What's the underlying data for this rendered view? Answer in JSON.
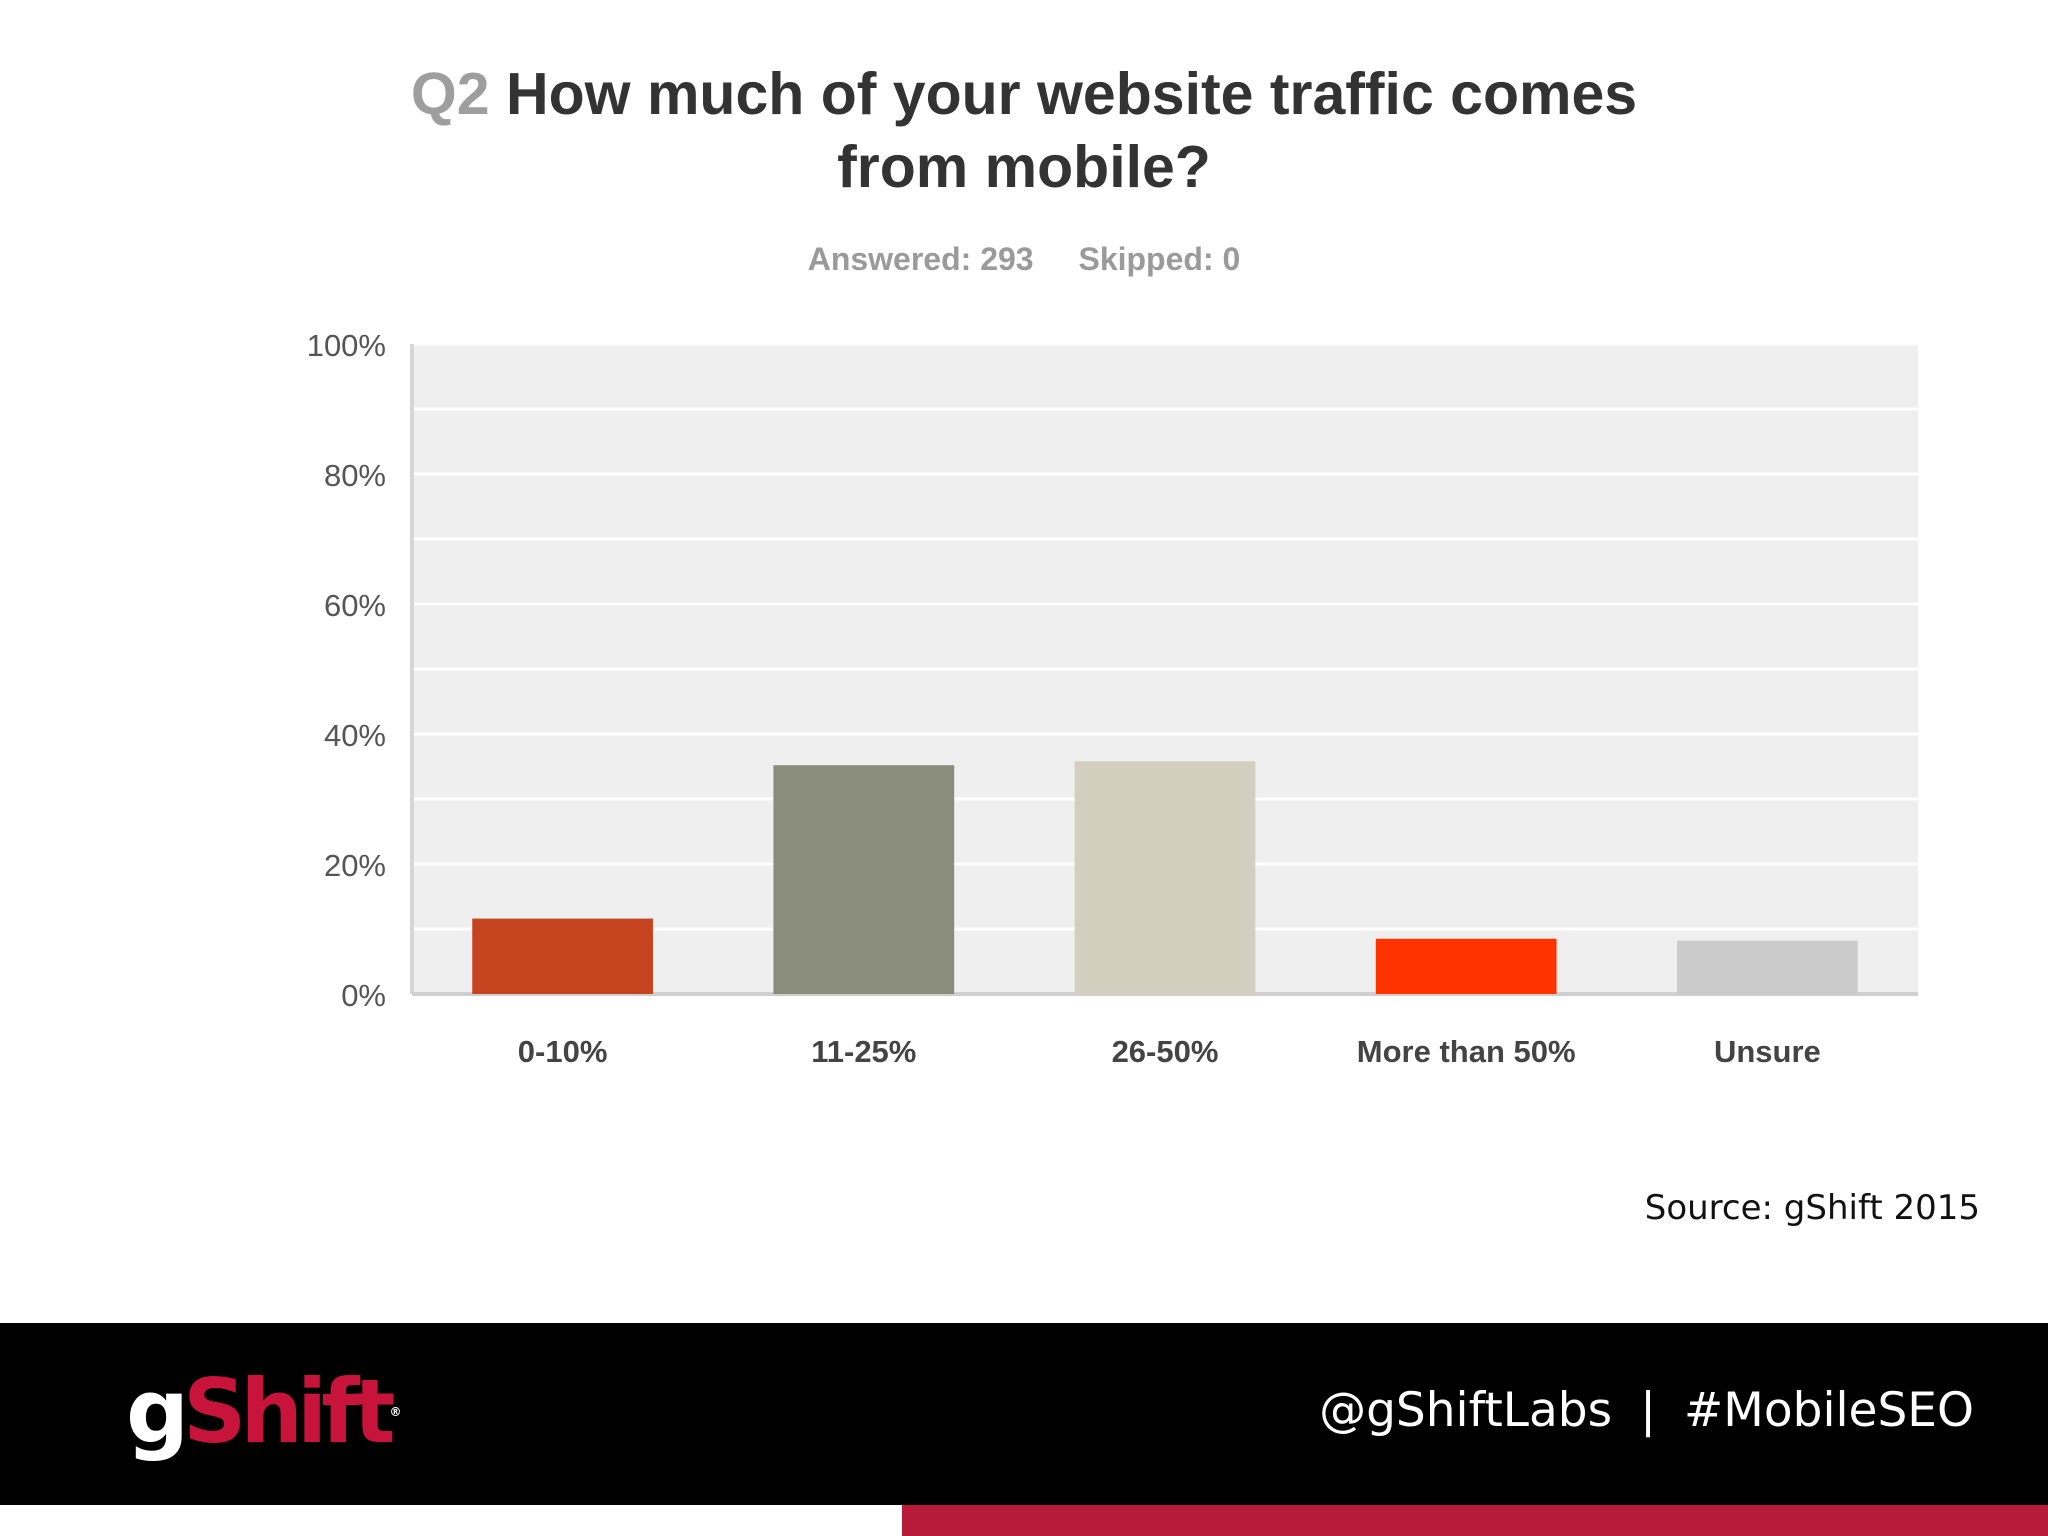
{
  "header": {
    "question_number": "Q2",
    "title_line1": "How much of your website traffic comes",
    "title_line2": "from mobile?",
    "answered": "Answered: 293",
    "skipped": "Skipped: 0"
  },
  "chart_data": {
    "type": "bar",
    "categories": [
      "0-10%",
      "11-25%",
      "26-50%",
      "More than 50%",
      "Unsure"
    ],
    "values": [
      11.6,
      35.2,
      35.8,
      8.5,
      8.2
    ],
    "colors": [
      "#c6431f",
      "#8a8c7c",
      "#d2cfbe",
      "#ff3300",
      "#cbcbcb"
    ],
    "ylim": [
      0,
      100
    ],
    "yticks": [
      "0%",
      "20%",
      "40%",
      "60%",
      "80%",
      "100%"
    ],
    "ytick_values": [
      0,
      20,
      40,
      60,
      80,
      100
    ],
    "grid": true,
    "plot_background": "#efefef"
  },
  "source": "Source: gShift 2015",
  "footer": {
    "logo_g": "g",
    "logo_rest": "Shift",
    "logo_mark": "®",
    "handle": "@gShiftLabs",
    "separator": "|",
    "hashtag": "#MobileSEO",
    "accent_color": "#b81a3a"
  }
}
